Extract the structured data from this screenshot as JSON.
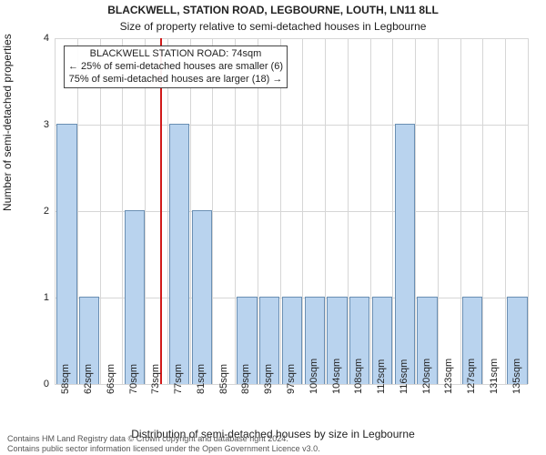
{
  "titles": {
    "line1": "BLACKWELL, STATION ROAD, LEGBOURNE, LOUTH, LN11 8LL",
    "line2": "Size of property relative to semi-detached houses in Legbourne"
  },
  "axes": {
    "x_label": "Distribution of semi-detached houses by size in Legbourne",
    "y_label": "Number of semi-detached properties",
    "y_min": 0,
    "y_max": 4,
    "y_ticks": [
      0,
      1,
      2,
      3,
      4
    ]
  },
  "style": {
    "title_fontsize": 12,
    "subtitle_fontsize": 12,
    "axis_label_fontsize": 12,
    "tick_fontsize": 11,
    "annotation_fontsize": 11,
    "footer_fontsize": 9,
    "bar_fill": "#b9d3ee",
    "bar_border": "#6a8fb3",
    "grid_color": "#d6d6d6",
    "ref_line_color": "#d11919",
    "text_color": "#222222",
    "footer_color": "#555555",
    "background": "#ffffff",
    "bar_width_ratio": 0.82
  },
  "reference": {
    "x": 74
  },
  "annotation": {
    "line1": "BLACKWELL STATION ROAD: 74sqm",
    "line2": "← 25% of semi-detached houses are smaller (6)",
    "line3": "75% of semi-detached houses are larger (18) →"
  },
  "footer": {
    "line1": "Contains HM Land Registry data © Crown copyright and database right 2024.",
    "line2": "Contains public sector information licensed under the Open Government Licence v3.0."
  },
  "data": [
    {
      "label": "58sqm",
      "x": 58,
      "y": 3
    },
    {
      "label": "62sqm",
      "x": 62,
      "y": 1
    },
    {
      "label": "66sqm",
      "x": 66,
      "y": 0
    },
    {
      "label": "70sqm",
      "x": 70,
      "y": 2
    },
    {
      "label": "73sqm",
      "x": 73,
      "y": 0
    },
    {
      "label": "77sqm",
      "x": 77,
      "y": 3
    },
    {
      "label": "81sqm",
      "x": 81,
      "y": 2
    },
    {
      "label": "85sqm",
      "x": 85,
      "y": 0
    },
    {
      "label": "89sqm",
      "x": 89,
      "y": 1
    },
    {
      "label": "93sqm",
      "x": 93,
      "y": 1
    },
    {
      "label": "97sqm",
      "x": 97,
      "y": 1
    },
    {
      "label": "100sqm",
      "x": 100,
      "y": 1
    },
    {
      "label": "104sqm",
      "x": 104,
      "y": 1
    },
    {
      "label": "108sqm",
      "x": 108,
      "y": 1
    },
    {
      "label": "112sqm",
      "x": 112,
      "y": 1
    },
    {
      "label": "116sqm",
      "x": 116,
      "y": 3
    },
    {
      "label": "120sqm",
      "x": 120,
      "y": 1
    },
    {
      "label": "123sqm",
      "x": 123,
      "y": 0
    },
    {
      "label": "127sqm",
      "x": 127,
      "y": 1
    },
    {
      "label": "131sqm",
      "x": 131,
      "y": 0
    },
    {
      "label": "135sqm",
      "x": 135,
      "y": 1
    }
  ]
}
